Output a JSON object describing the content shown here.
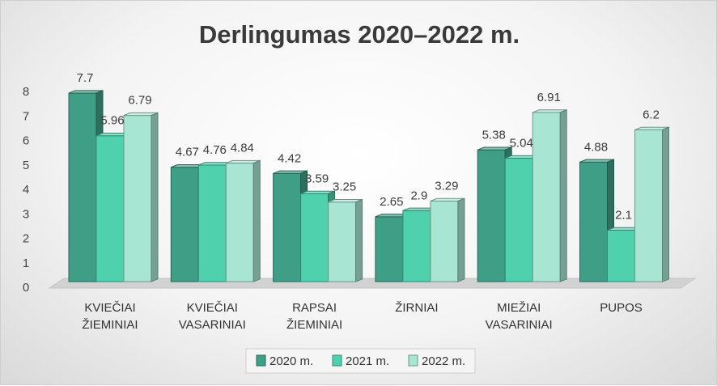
{
  "chart_data": {
    "type": "bar",
    "title": "Derlingumas 2020–2022 m.",
    "categories": [
      [
        "KVIEČIAI",
        "ŽIEMINIAI"
      ],
      [
        "KVIEČIAI",
        "VASARINIAI"
      ],
      [
        "RAPSAI",
        "ŽIEMINIAI"
      ],
      [
        "ŽIRNIAI"
      ],
      [
        "MIEŽIAI",
        "VASARINIAI"
      ],
      [
        "PUPOS"
      ]
    ],
    "series": [
      {
        "name": "2020 m.",
        "values": [
          7.7,
          4.67,
          4.42,
          2.65,
          5.38,
          4.88
        ],
        "color": "#3f9e86"
      },
      {
        "name": "2021 m.",
        "values": [
          5.96,
          4.76,
          3.59,
          2.9,
          5.04,
          2.1
        ],
        "color": "#4fd1ae"
      },
      {
        "name": "2022 m.",
        "values": [
          6.79,
          4.84,
          3.25,
          3.29,
          6.91,
          6.2
        ],
        "color": "#a8e5d2"
      }
    ],
    "data_labels": [
      [
        "7.7",
        "4.67",
        "4.42",
        "2.65",
        "5.38",
        "4.88"
      ],
      [
        "5.96",
        "4.76",
        "3.59",
        "2.9",
        "5.04",
        "2.1"
      ],
      [
        "6.79",
        "4.84",
        "3.25",
        "3.29",
        "6.91",
        "6.2"
      ]
    ],
    "yticks": [
      "0",
      "1",
      "2",
      "3",
      "4",
      "5",
      "6",
      "7",
      "8"
    ],
    "ylim": [
      0,
      8
    ],
    "grid": false,
    "legend_position": "bottom"
  }
}
